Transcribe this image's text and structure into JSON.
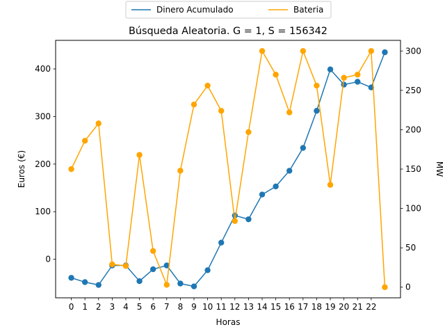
{
  "chart_data": {
    "type": "line",
    "title": "Búsqueda Aleatoria. G = 1, S = 156342",
    "xlabel": "Horas",
    "ylabel_left": "Euros (€)",
    "ylabel_right": "MW",
    "x_ticks": [
      "0",
      "1",
      "2",
      "3",
      "4",
      "5",
      "6",
      "7",
      "8",
      "9",
      "10",
      "11",
      "12",
      "13",
      "14",
      "15",
      "16",
      "17",
      "18",
      "19",
      "20",
      "21",
      "22"
    ],
    "x": [
      0,
      1,
      2,
      3,
      4,
      5,
      6,
      7,
      8,
      9,
      10,
      11,
      12,
      13,
      14,
      15,
      16,
      17,
      18,
      19,
      20,
      21,
      22,
      23
    ],
    "xlim": [
      -1.15,
      24.15
    ],
    "left_yticks": [
      0,
      100,
      200,
      300,
      400
    ],
    "left_ylim": [
      -81,
      460
    ],
    "right_yticks": [
      0,
      50,
      100,
      150,
      200,
      250,
      300
    ],
    "right_ylim": [
      -13.5,
      313.5
    ],
    "grid": false,
    "legend_position": "top-center (outside plot)",
    "series": [
      {
        "name": "Dinero Acumulado",
        "axis": "left",
        "color": "#1f77b4",
        "values": [
          -39,
          -48,
          -54,
          -13,
          -13,
          -46,
          -21,
          -13,
          -51,
          -57,
          -23,
          35,
          92,
          84,
          136,
          153,
          186,
          234,
          312,
          399,
          367,
          373,
          361,
          435
        ]
      },
      {
        "name": "Bateria",
        "axis": "right",
        "color": "#ffa500",
        "values": [
          150,
          186,
          208,
          29,
          27,
          168,
          46,
          3,
          148,
          232,
          256,
          224,
          84,
          197,
          300,
          270,
          222,
          300,
          256,
          130,
          266,
          270,
          300,
          0
        ]
      }
    ]
  }
}
